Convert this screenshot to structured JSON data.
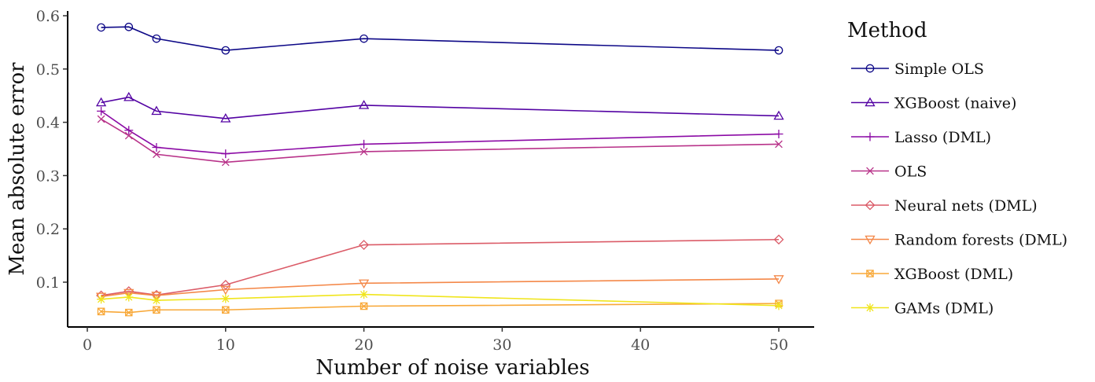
{
  "chart_data": {
    "type": "line",
    "xlabel": "Number of noise variables",
    "ylabel": "Mean absolute error",
    "xlim": [
      0,
      50
    ],
    "ylim": [
      0.04,
      0.6
    ],
    "x_ticks": [
      0,
      10,
      20,
      30,
      40,
      50
    ],
    "x_tick_labels": [
      "0",
      "10",
      "20",
      "30",
      "40",
      "50"
    ],
    "y_ticks": [
      0.1,
      0.2,
      0.3,
      0.4,
      0.5,
      0.6
    ],
    "y_tick_labels": [
      "0.1",
      "0.2",
      "0.3",
      "0.4",
      "0.5",
      "0.6"
    ],
    "grid": false,
    "legend": {
      "title": "Method",
      "position": "right"
    },
    "x": [
      1,
      3,
      5,
      10,
      20,
      50
    ],
    "series": [
      {
        "name": "Simple OLS",
        "color": "#0d0887",
        "marker": "circle",
        "values": [
          0.578,
          0.579,
          0.557,
          0.535,
          0.557,
          0.535
        ]
      },
      {
        "name": "XGBoost (naive)",
        "color": "#5302a3",
        "marker": "triangle-up",
        "values": [
          0.437,
          0.447,
          0.421,
          0.407,
          0.432,
          0.412
        ]
      },
      {
        "name": "Lasso (DML)",
        "color": "#8b0aa5",
        "marker": "plus",
        "values": [
          0.421,
          0.385,
          0.353,
          0.341,
          0.359,
          0.378
        ]
      },
      {
        "name": "OLS",
        "color": "#b83289",
        "marker": "cross",
        "values": [
          0.406,
          0.375,
          0.34,
          0.325,
          0.345,
          0.359
        ]
      },
      {
        "name": "Neural nets (DML)",
        "color": "#db5c68",
        "marker": "diamond",
        "values": [
          0.075,
          0.083,
          0.076,
          0.095,
          0.17,
          0.18
        ]
      },
      {
        "name": "Random forests (DML)",
        "color": "#f48849",
        "marker": "triangle-down",
        "values": [
          0.073,
          0.08,
          0.075,
          0.086,
          0.098,
          0.106
        ]
      },
      {
        "name": "XGBoost (DML)",
        "color": "#f8a838",
        "marker": "square-cross",
        "values": [
          0.045,
          0.043,
          0.048,
          0.048,
          0.055,
          0.06
        ]
      },
      {
        "name": "GAMs (DML)",
        "color": "#f0e51c",
        "marker": "asterisk",
        "values": [
          0.068,
          0.072,
          0.066,
          0.069,
          0.077,
          0.056
        ]
      }
    ]
  }
}
